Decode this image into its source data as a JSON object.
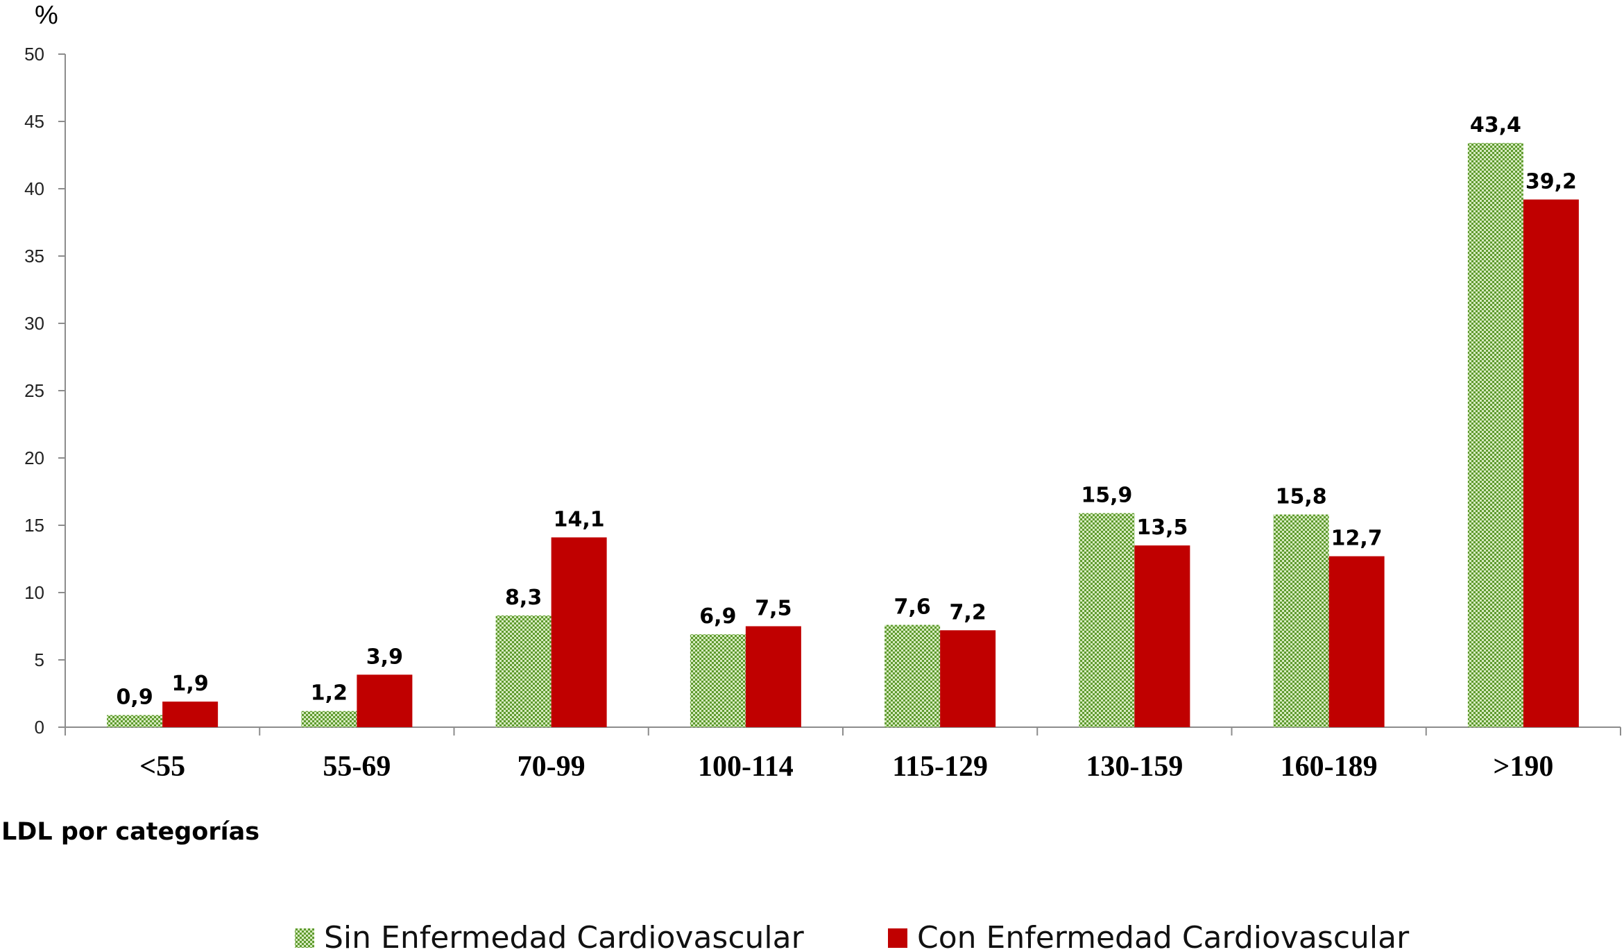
{
  "chart_data": {
    "type": "bar",
    "title": "",
    "ylabel": "%",
    "xlabel": "LDL por categorías",
    "ylim": [
      0,
      50
    ],
    "yticks": [
      0,
      5,
      10,
      15,
      20,
      25,
      30,
      35,
      40,
      45,
      50
    ],
    "grid": false,
    "legend_position": "bottom",
    "categories": [
      "<55",
      "55-69",
      "70-99",
      "100-114",
      "115-129",
      "130-159",
      "160-189",
      ">190"
    ],
    "series": [
      {
        "name": "Sin Enfermedad Cardiovascular",
        "color": "#7fb24a",
        "pattern": "dotted-green",
        "values": [
          0.9,
          1.2,
          8.3,
          6.9,
          7.6,
          15.9,
          15.8,
          43.4
        ],
        "labels": [
          "0,9",
          "1,2",
          "8,3",
          "6,9",
          "7,6",
          "15,9",
          "15,8",
          "43,4"
        ]
      },
      {
        "name": "Con Enfermedad Cardiovascular",
        "color": "#c00000",
        "pattern": "solid",
        "values": [
          1.9,
          3.9,
          14.1,
          7.5,
          7.2,
          13.5,
          12.7,
          39.2
        ],
        "labels": [
          "1,9",
          "3,9",
          "14,1",
          "7,5",
          "7,2",
          "13,5",
          "12,7",
          "39,2"
        ]
      }
    ]
  }
}
